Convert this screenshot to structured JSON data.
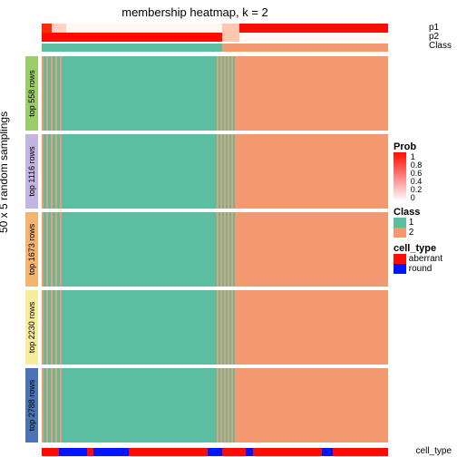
{
  "title": "membership heatmap, k = 2",
  "ylabel": "50 x 5 random samplings",
  "top_annot_labels": [
    "p1",
    "p2",
    "Class"
  ],
  "bottom_annot_label": "cell_type",
  "row_groups": [
    {
      "label": "top 558 rows",
      "color": "#9bce6b"
    },
    {
      "label": "top 1116 rows",
      "color": "#c2b5e0"
    },
    {
      "label": "top 1673 rows",
      "color": "#f4b471"
    },
    {
      "label": "top 2230 rows",
      "color": "#f7ec99"
    },
    {
      "label": "top 2788 rows",
      "color": "#4a72b5"
    }
  ],
  "colors": {
    "class1": "#5bbea0",
    "class2": "#f3996f",
    "prob_hi": "#ff0b00",
    "prob_lo": "#ffffff",
    "aberrant": "#ff0b00",
    "round": "#0016ff"
  },
  "class_split": 0.52,
  "p1_segments": [
    {
      "w": 0.03,
      "c": "#ff2a00"
    },
    {
      "w": 0.04,
      "c": "#ffd5c2"
    },
    {
      "w": 0.45,
      "c": "#fff7f2"
    },
    {
      "w": 0.05,
      "c": "#ffc6b0"
    },
    {
      "w": 0.43,
      "c": "#ff0b00"
    }
  ],
  "p2_segments": [
    {
      "w": 0.52,
      "c": "#ff0b00"
    },
    {
      "w": 0.05,
      "c": "#ffc6b0"
    },
    {
      "w": 0.43,
      "c": "#fff7f2"
    }
  ],
  "cellbar_segments": [
    {
      "w": 0.05,
      "c": "#ff0b00"
    },
    {
      "w": 0.08,
      "c": "#0016ff"
    },
    {
      "w": 0.02,
      "c": "#ff0b00"
    },
    {
      "w": 0.1,
      "c": "#0016ff"
    },
    {
      "w": 0.23,
      "c": "#ff0b00"
    },
    {
      "w": 0.04,
      "c": "#0016ff"
    },
    {
      "w": 0.07,
      "c": "#ff0b00"
    },
    {
      "w": 0.02,
      "c": "#0016ff"
    },
    {
      "w": 0.2,
      "c": "#ff0b00"
    },
    {
      "w": 0.03,
      "c": "#0016ff"
    },
    {
      "w": 0.16,
      "c": "#ff0b00"
    }
  ],
  "legend": {
    "prob_title": "Prob",
    "prob_ticks": [
      "1",
      "0.8",
      "0.6",
      "0.4",
      "0.2",
      "0"
    ],
    "class_title": "Class",
    "class_items": [
      {
        "label": "1",
        "color": "#5bbea0"
      },
      {
        "label": "2",
        "color": "#f3996f"
      }
    ],
    "cell_title": "cell_type",
    "cell_items": [
      {
        "label": "aberrant",
        "color": "#ff0b00"
      },
      {
        "label": "round",
        "color": "#0016ff"
      }
    ]
  }
}
